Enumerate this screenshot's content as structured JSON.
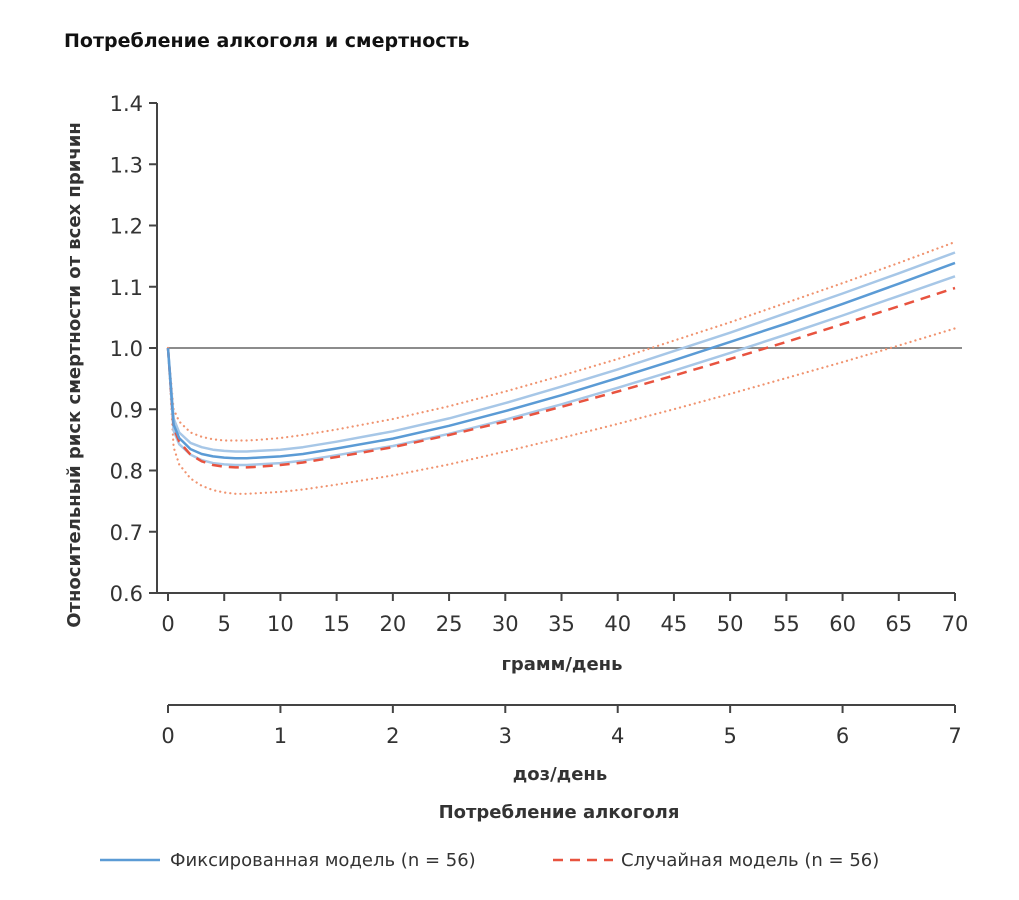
{
  "title": "Потребление алкоголя и смертность",
  "chart_data": {
    "type": "line",
    "title": "Потребление алкоголя и смертность",
    "ylabel": "Относительный риск смертности от всех причин",
    "xlabel": "грамм/день",
    "x2label": "доз/день",
    "bottom_label": "Потребление алкоголя",
    "ylim": [
      0.6,
      1.4
    ],
    "xlim": [
      0,
      70
    ],
    "x2lim": [
      0,
      7
    ],
    "yticks": [
      "0.6",
      "0.7",
      "0.8",
      "0.9",
      "1.0",
      "1.1",
      "1.2",
      "1.3",
      "1.4"
    ],
    "xticks": [
      "0",
      "5",
      "10",
      "15",
      "20",
      "25",
      "30",
      "35",
      "40",
      "45",
      "50",
      "55",
      "60",
      "65",
      "70"
    ],
    "x2ticks": [
      "0",
      "1",
      "2",
      "3",
      "4",
      "5",
      "6",
      "7"
    ],
    "reference_line": 1.0,
    "x": [
      0,
      0.5,
      1,
      2,
      3,
      4,
      5,
      6,
      7,
      8,
      10,
      12,
      15,
      20,
      25,
      30,
      35,
      40,
      45,
      50,
      55,
      60,
      65,
      70
    ],
    "series": [
      {
        "name": "Фиксированная модель (n = 56)",
        "color": "#5b9bd5",
        "style": "solid",
        "values": [
          1.0,
          0.875,
          0.853,
          0.835,
          0.827,
          0.823,
          0.821,
          0.82,
          0.82,
          0.821,
          0.823,
          0.827,
          0.836,
          0.852,
          0.873,
          0.897,
          0.923,
          0.951,
          0.98,
          1.01,
          1.04,
          1.072,
          1.105,
          1.139
        ]
      },
      {
        "name": "Фиксированная модель — верхняя граница",
        "color": "#a7c7e7",
        "style": "solid",
        "values": [
          1.0,
          0.885,
          0.862,
          0.845,
          0.838,
          0.834,
          0.832,
          0.831,
          0.831,
          0.832,
          0.834,
          0.838,
          0.847,
          0.864,
          0.885,
          0.91,
          0.937,
          0.965,
          0.995,
          1.025,
          1.057,
          1.089,
          1.122,
          1.156
        ]
      },
      {
        "name": "Фиксированная модель — нижняя граница",
        "color": "#a7c7e7",
        "style": "solid",
        "values": [
          1.0,
          0.865,
          0.843,
          0.826,
          0.817,
          0.812,
          0.81,
          0.809,
          0.809,
          0.81,
          0.812,
          0.816,
          0.825,
          0.84,
          0.86,
          0.883,
          0.908,
          0.935,
          0.963,
          0.992,
          1.022,
          1.053,
          1.085,
          1.117
        ]
      },
      {
        "name": "Случайная модель (n = 56)",
        "color": "#e8533f",
        "style": "dashed",
        "values": [
          1.0,
          0.87,
          0.847,
          0.826,
          0.815,
          0.809,
          0.806,
          0.805,
          0.805,
          0.806,
          0.809,
          0.813,
          0.822,
          0.838,
          0.858,
          0.88,
          0.904,
          0.929,
          0.955,
          0.982,
          1.01,
          1.039,
          1.068,
          1.098
        ]
      },
      {
        "name": "Случайная модель — верхняя граница",
        "color": "#f0936f",
        "style": "dotted",
        "values": [
          1.0,
          0.9,
          0.88,
          0.862,
          0.855,
          0.851,
          0.849,
          0.849,
          0.849,
          0.85,
          0.853,
          0.858,
          0.867,
          0.884,
          0.905,
          0.929,
          0.955,
          0.982,
          1.012,
          1.042,
          1.074,
          1.106,
          1.139,
          1.173
        ]
      },
      {
        "name": "Случайная модель — нижняя граница",
        "color": "#f0936f",
        "style": "dotted",
        "values": [
          1.0,
          0.838,
          0.81,
          0.787,
          0.775,
          0.768,
          0.764,
          0.762,
          0.762,
          0.763,
          0.765,
          0.769,
          0.777,
          0.792,
          0.81,
          0.831,
          0.853,
          0.876,
          0.9,
          0.925,
          0.951,
          0.977,
          1.004,
          1.032
        ]
      }
    ],
    "legend": [
      {
        "label": "Фиксированная модель (n = 56)",
        "color": "#5b9bd5",
        "style": "solid"
      },
      {
        "label": "Случайная модель (n = 56)",
        "color": "#e8533f",
        "style": "dashed"
      }
    ],
    "legend_position": "bottom"
  }
}
